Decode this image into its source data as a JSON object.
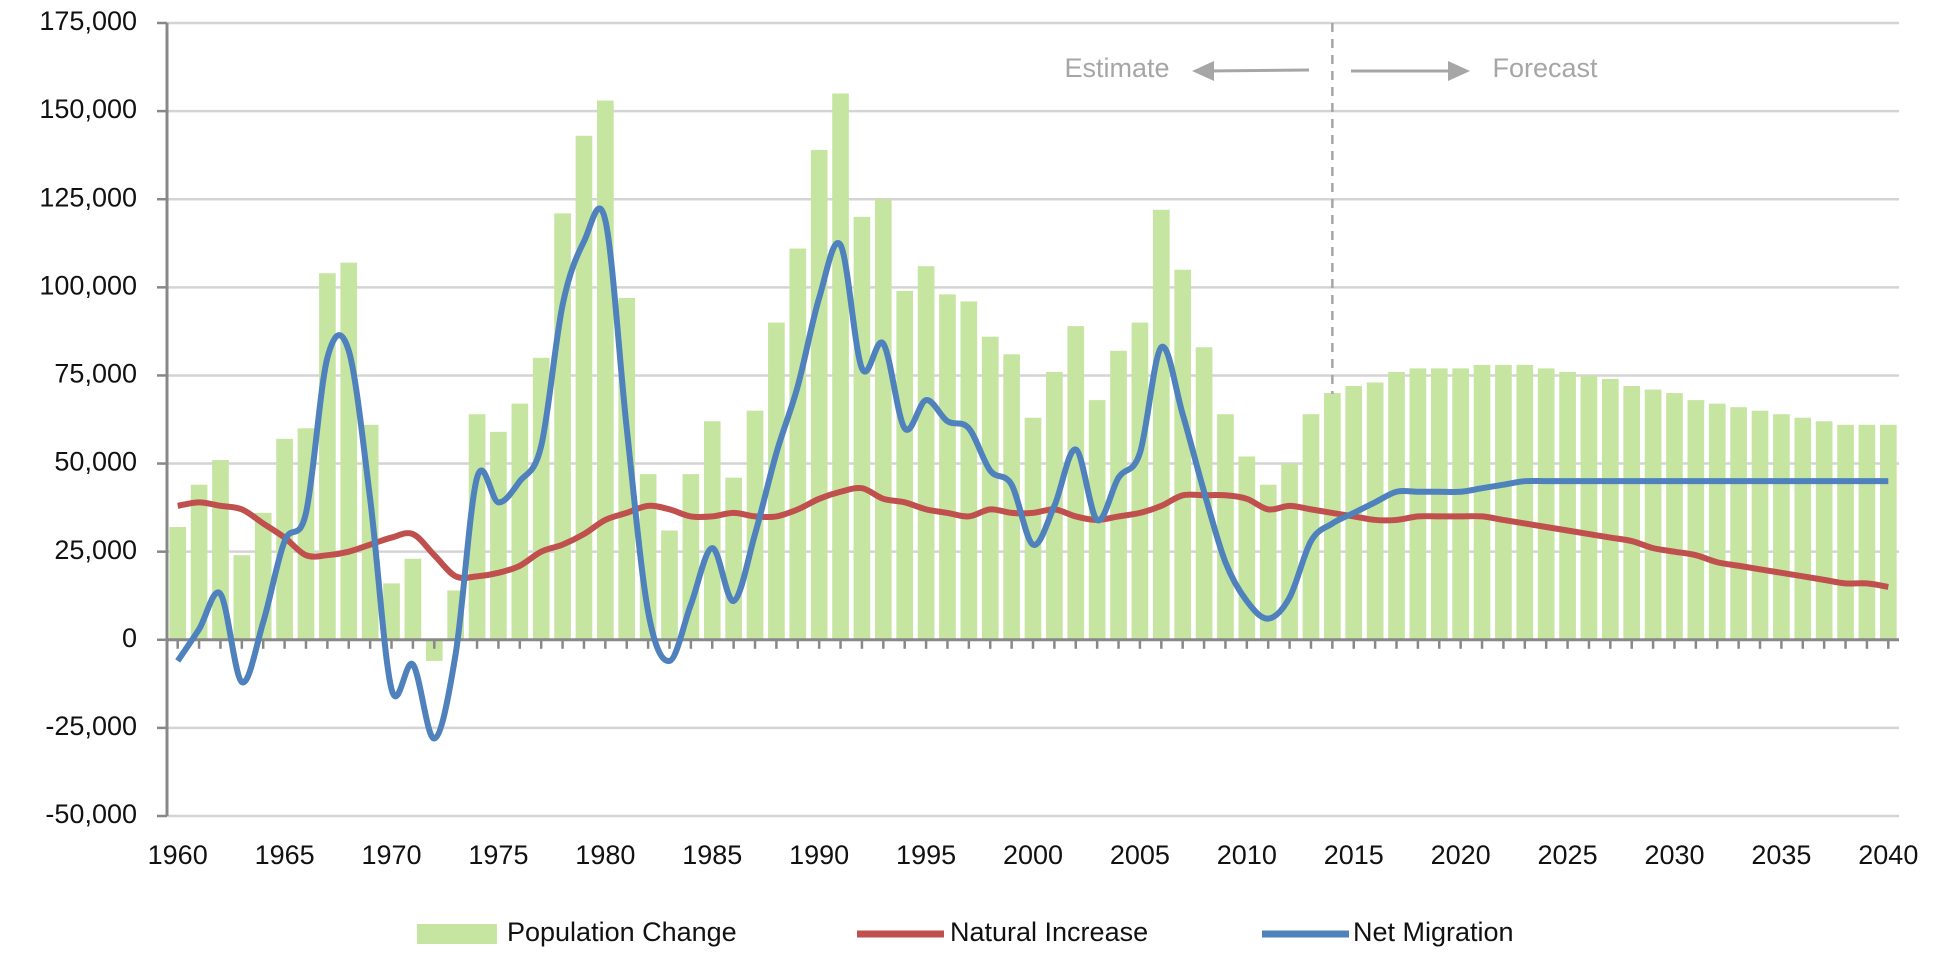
{
  "chart_data": {
    "type": "bar-line",
    "x": [
      1960,
      1961,
      1962,
      1963,
      1964,
      1965,
      1966,
      1967,
      1968,
      1969,
      1970,
      1971,
      1972,
      1973,
      1974,
      1975,
      1976,
      1977,
      1978,
      1979,
      1980,
      1981,
      1982,
      1983,
      1984,
      1985,
      1986,
      1987,
      1988,
      1989,
      1990,
      1991,
      1992,
      1993,
      1994,
      1995,
      1996,
      1997,
      1998,
      1999,
      2000,
      2001,
      2002,
      2003,
      2004,
      2005,
      2006,
      2007,
      2008,
      2009,
      2010,
      2011,
      2012,
      2013,
      2014,
      2015,
      2016,
      2017,
      2018,
      2019,
      2020,
      2021,
      2022,
      2023,
      2024,
      2025,
      2026,
      2027,
      2028,
      2029,
      2030,
      2031,
      2032,
      2033,
      2034,
      2035,
      2036,
      2037,
      2038,
      2039,
      2040
    ],
    "series": [
      {
        "name": "Population Change",
        "kind": "bar",
        "color": "#c6e5a1",
        "values": [
          32000,
          44000,
          51000,
          24000,
          36000,
          57000,
          60000,
          104000,
          107000,
          61000,
          16000,
          23000,
          -6000,
          14000,
          64000,
          59000,
          67000,
          80000,
          121000,
          143000,
          153000,
          97000,
          47000,
          31000,
          47000,
          62000,
          46000,
          65000,
          90000,
          111000,
          139000,
          155000,
          120000,
          125000,
          99000,
          106000,
          98000,
          96000,
          86000,
          81000,
          63000,
          76000,
          89000,
          68000,
          82000,
          90000,
          122000,
          105000,
          83000,
          64000,
          52000,
          44000,
          50000,
          64000,
          70000,
          72000,
          73000,
          76000,
          77000,
          77000,
          77000,
          78000,
          78000,
          78000,
          77000,
          76000,
          75000,
          74000,
          72000,
          71000,
          70000,
          68000,
          67000,
          66000,
          65000,
          64000,
          63000,
          62000,
          61000,
          61000,
          61000
        ]
      },
      {
        "name": "Natural Increase",
        "kind": "line",
        "color": "#c0504d",
        "values": [
          38000,
          39000,
          38000,
          37000,
          33000,
          29000,
          24000,
          24000,
          25000,
          27000,
          29000,
          30000,
          24000,
          18000,
          18000,
          19000,
          21000,
          25000,
          27000,
          30000,
          34000,
          36000,
          38000,
          37000,
          35000,
          35000,
          36000,
          35000,
          35000,
          37000,
          40000,
          42000,
          43000,
          40000,
          39000,
          37000,
          36000,
          35000,
          37000,
          36000,
          36000,
          37000,
          35000,
          34000,
          35000,
          36000,
          38000,
          41000,
          41000,
          41000,
          40000,
          37000,
          38000,
          37000,
          36000,
          35000,
          34000,
          34000,
          35000,
          35000,
          35000,
          35000,
          34000,
          33000,
          32000,
          31000,
          30000,
          29000,
          28000,
          26000,
          25000,
          24000,
          22000,
          21000,
          20000,
          19000,
          18000,
          17000,
          16000,
          16000,
          15000
        ]
      },
      {
        "name": "Net Migration",
        "kind": "line",
        "color": "#4f81bd",
        "values": [
          -6000,
          3000,
          13000,
          -12000,
          5000,
          28000,
          36000,
          80000,
          82000,
          40000,
          -14000,
          -7000,
          -28000,
          -4000,
          46000,
          39000,
          45000,
          55000,
          95000,
          113000,
          119000,
          60000,
          8000,
          -6000,
          10000,
          26000,
          11000,
          30000,
          53000,
          72000,
          97000,
          112000,
          77000,
          84000,
          60000,
          68000,
          62000,
          60000,
          48000,
          44000,
          27000,
          38000,
          54000,
          34000,
          46000,
          53000,
          83000,
          64000,
          42000,
          22000,
          11000,
          6000,
          12000,
          28000,
          33000,
          36000,
          39000,
          42000,
          42000,
          42000,
          42000,
          43000,
          44000,
          45000,
          45000,
          45000,
          45000,
          45000,
          45000,
          45000,
          45000,
          45000,
          45000,
          45000,
          45000,
          45000,
          45000,
          45000,
          45000,
          45000,
          45000
        ]
      }
    ],
    "xlim": [
      1959.5,
      2040.5
    ],
    "xticks": [
      1960,
      1965,
      1970,
      1975,
      1980,
      1985,
      1990,
      1995,
      2000,
      2005,
      2010,
      2015,
      2020,
      2025,
      2030,
      2035,
      2040
    ],
    "ylim": [
      -50000,
      175000
    ],
    "yticks": [
      {
        "value": -50000,
        "label": "-50,000"
      },
      {
        "value": -25000,
        "label": "-25,000"
      },
      0,
      {
        "value": 25000,
        "label": "25,000"
      },
      {
        "value": 50000,
        "label": "50,000"
      },
      {
        "value": 75000,
        "label": "75,000"
      },
      {
        "value": 100000,
        "label": "100,000"
      },
      {
        "value": 125000,
        "label": "125,000"
      },
      {
        "value": 150000,
        "label": "150,000"
      },
      {
        "value": 175000,
        "label": "175,000"
      }
    ],
    "grid": true,
    "legend": "bottom",
    "divider_x": 2014,
    "annotations": [
      "Estimate",
      "Forecast"
    ]
  }
}
